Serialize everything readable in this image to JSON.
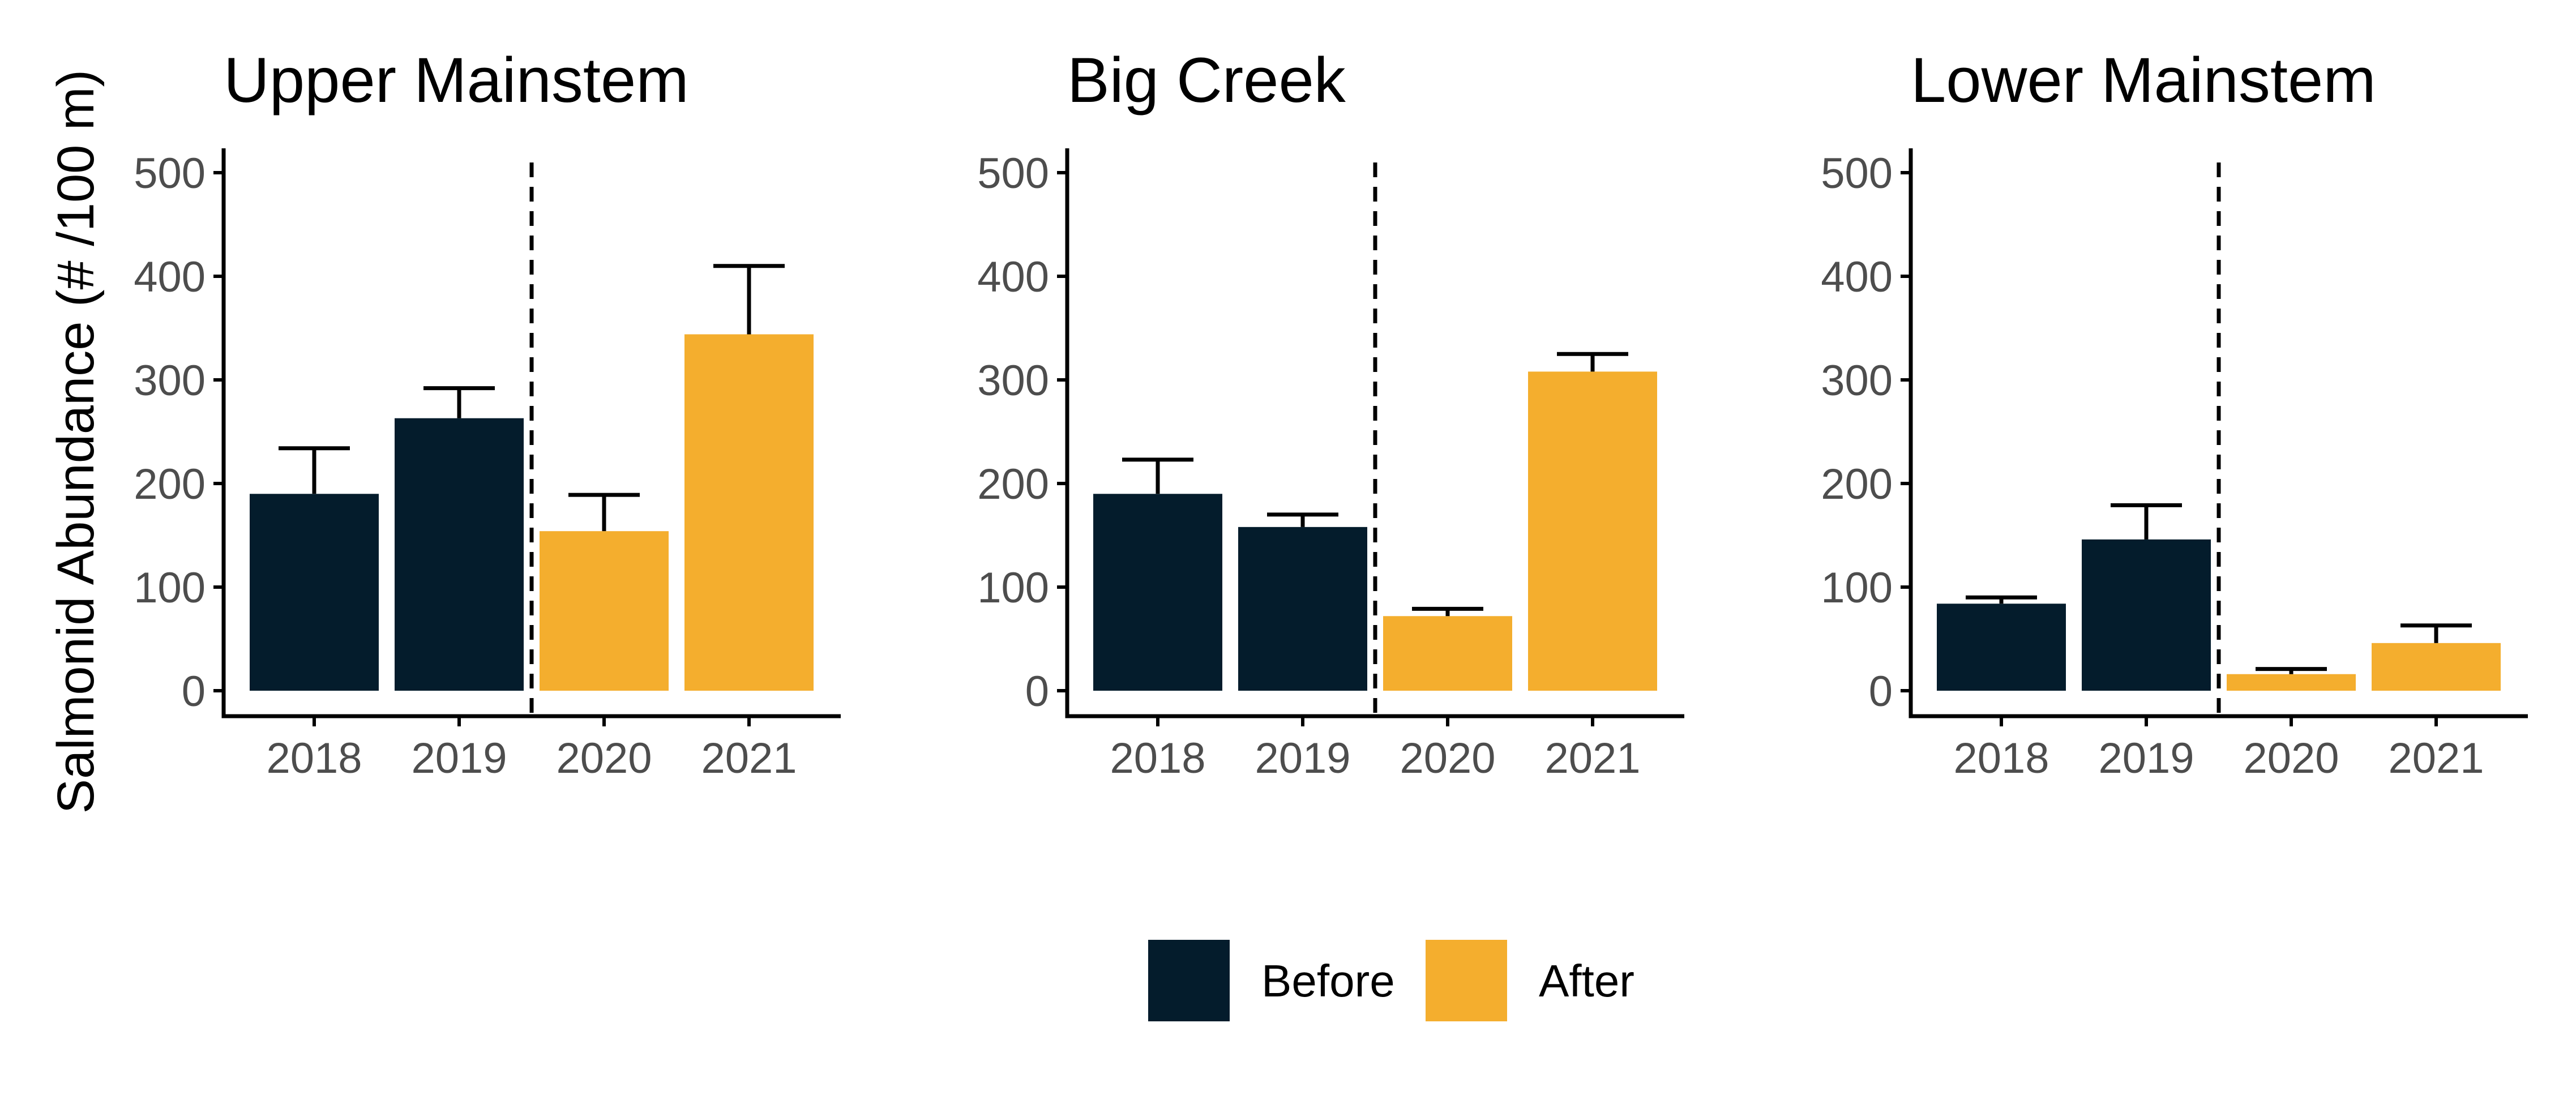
{
  "chart_data": {
    "type": "bar",
    "ylabel": "Salmonid Abundance (# /100 m)",
    "ylim": [
      0,
      520
    ],
    "yticks": [
      0,
      100,
      200,
      300,
      400,
      500
    ],
    "categories": [
      "2018",
      "2019",
      "2020",
      "2021"
    ],
    "period_of_category": [
      "Before",
      "Before",
      "After",
      "After"
    ],
    "divider_between": [
      "2019",
      "2020"
    ],
    "colors": {
      "Before": "#041C2C",
      "After": "#F4AE2E"
    },
    "legend": {
      "position": "bottom",
      "entries": [
        "Before",
        "After"
      ]
    },
    "grid": false,
    "panels": [
      {
        "title": "Upper Mainstem",
        "values": [
          190,
          263,
          154,
          344
        ],
        "error_upper": [
          234,
          292,
          189,
          410
        ]
      },
      {
        "title": "Big Creek",
        "values": [
          190,
          158,
          72,
          308
        ],
        "error_upper": [
          223,
          170,
          79,
          325
        ]
      },
      {
        "title": "Lower Mainstem",
        "values": [
          84,
          146,
          16,
          46
        ],
        "error_upper": [
          90,
          179,
          21,
          63
        ]
      }
    ]
  }
}
